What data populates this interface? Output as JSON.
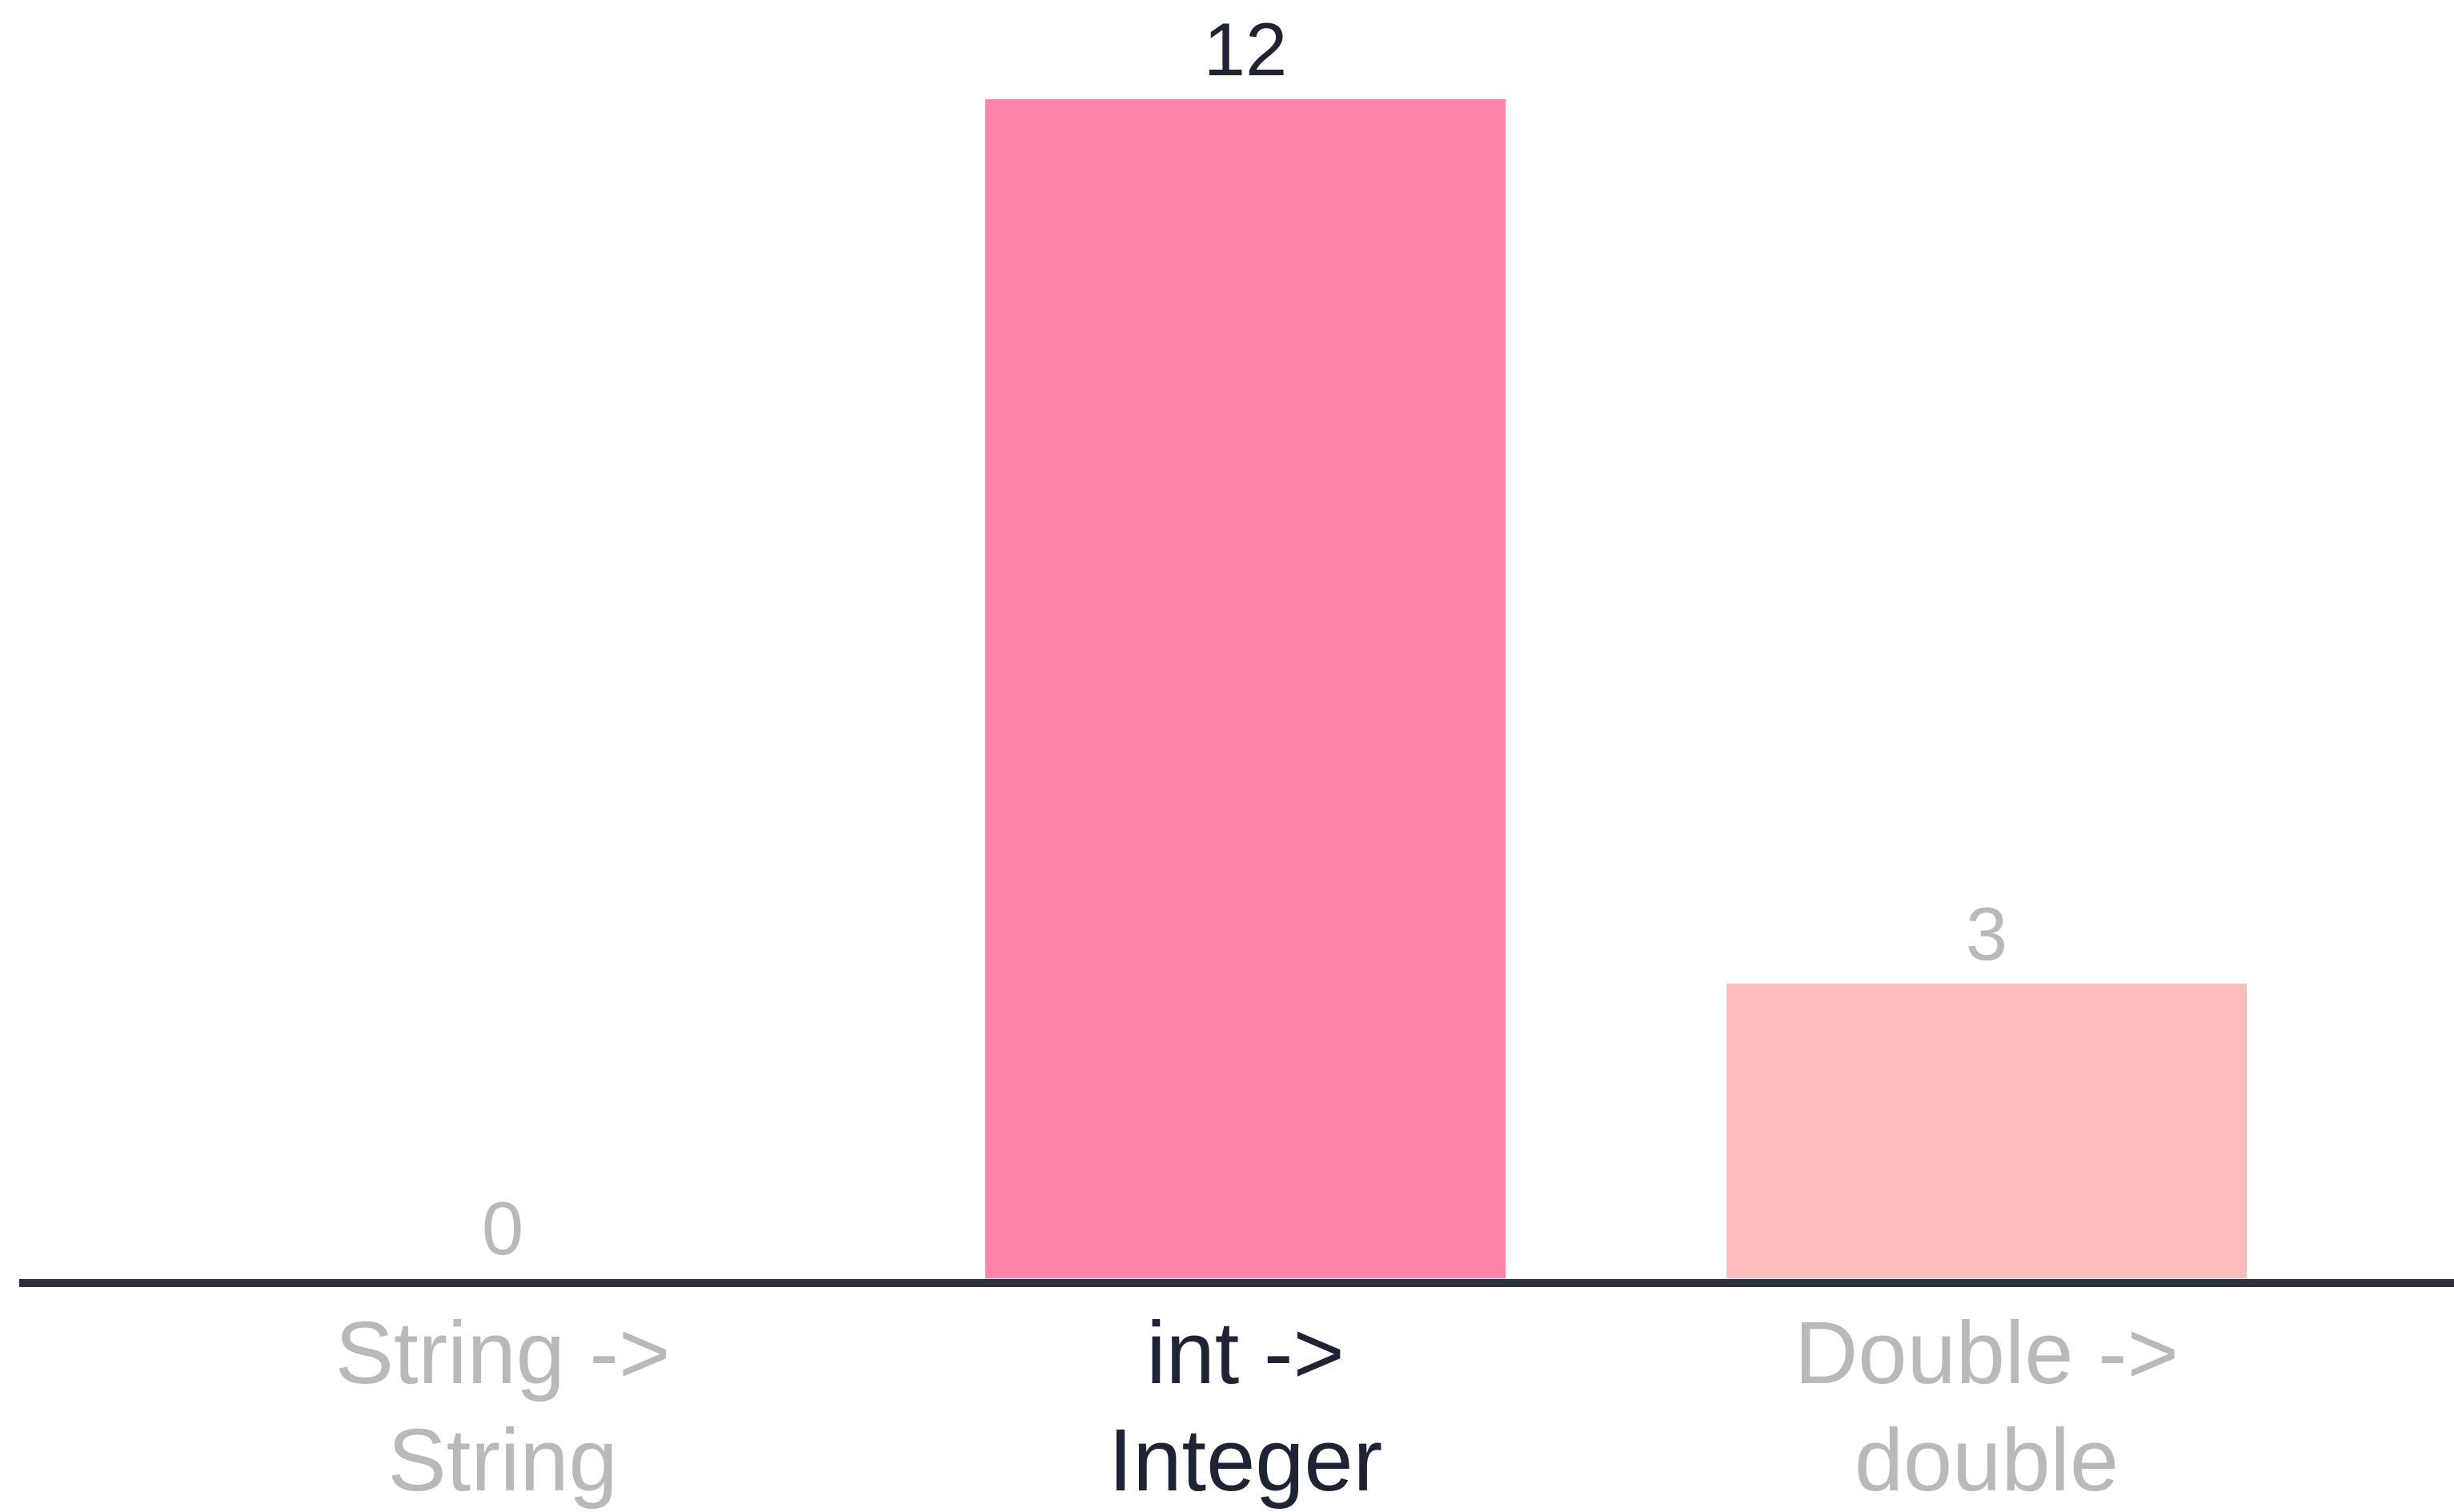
{
  "chart_data": {
    "type": "bar",
    "categories": [
      [
        "String ->",
        "String"
      ],
      [
        "int ->",
        "Integer"
      ],
      [
        "Double ->",
        "double"
      ]
    ],
    "values": [
      0,
      12,
      3
    ],
    "value_labels": [
      "0",
      "12",
      "3"
    ],
    "bar_colors": [
      "#ff82a9",
      "#ff82a9",
      "#ffbdbd"
    ],
    "label_colors": [
      "#b9b9bb",
      "#1e2433",
      "#b9b9bb"
    ],
    "axis_color": "#2a303c",
    "ylim": [
      0,
      12
    ],
    "grid": false,
    "legend": "none",
    "title": "",
    "xlabel": "",
    "ylabel": ""
  }
}
